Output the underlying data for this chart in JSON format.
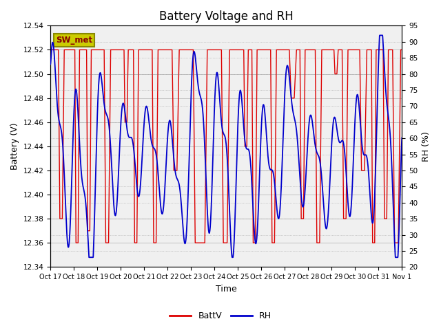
{
  "title": "Battery Voltage and RH",
  "xlabel": "Time",
  "ylabel_left": "Battery (V)",
  "ylabel_right": "RH (%)",
  "annotation": "SW_met",
  "ylim_left": [
    12.34,
    12.54
  ],
  "ylim_right": [
    20,
    95
  ],
  "yticks_left": [
    12.34,
    12.36,
    12.38,
    12.4,
    12.42,
    12.44,
    12.46,
    12.48,
    12.5,
    12.52,
    12.54
  ],
  "yticks_right": [
    20,
    25,
    30,
    35,
    40,
    45,
    50,
    55,
    60,
    65,
    70,
    75,
    80,
    85,
    90,
    95
  ],
  "xtick_labels": [
    "Oct 17",
    "Oct 18",
    "Oct 19",
    "Oct 20",
    "Oct 21",
    "Oct 22",
    "Oct 23",
    "Oct 24",
    "Oct 25",
    "Oct 26",
    "Oct 27",
    "Oct 28",
    "Oct 29",
    "Oct 30",
    "Oct 31",
    "Nov 1"
  ],
  "batt_color": "#DD0000",
  "rh_color": "#0000CC",
  "bg_outer": "#DCDCDC",
  "bg_inner": "#F0F0F0",
  "legend_batt": "BattV",
  "legend_rh": "RH",
  "title_fontsize": 12,
  "axis_fontsize": 9,
  "tick_fontsize": 7.5,
  "annotation_bg": "#CCCC00",
  "annotation_edge": "#888800",
  "figsize": [
    6.4,
    4.8
  ],
  "dpi": 100,
  "batt_high": 12.52,
  "batt_low": 12.36,
  "batt_mid1": 12.38,
  "batt_mid2": 12.46,
  "batt_mid3": 12.42,
  "rh_high": 88,
  "rh_low": 25
}
